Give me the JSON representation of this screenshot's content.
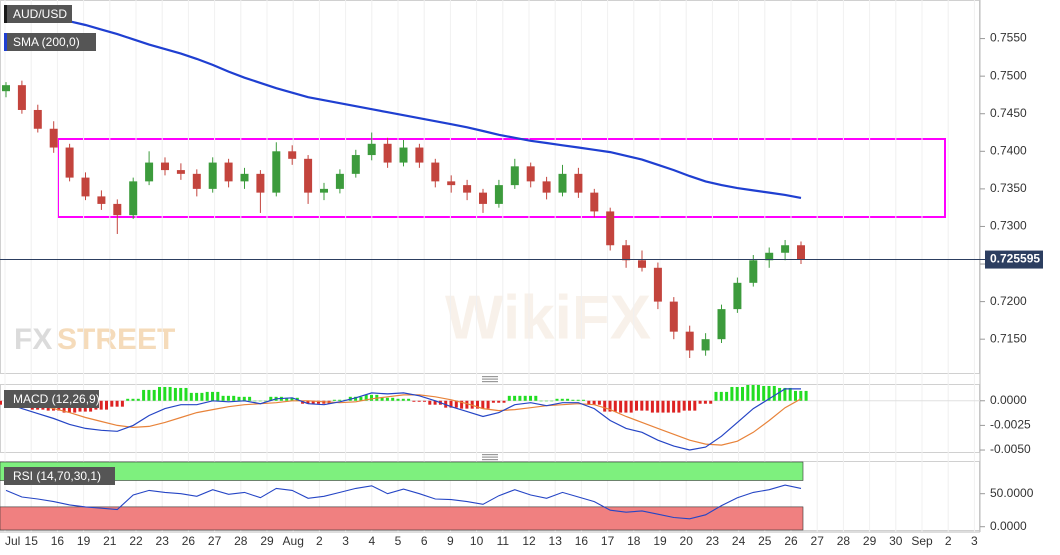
{
  "watermark": {
    "fx": "FX",
    "street": "STREET",
    "wikifx": "WikiFX"
  },
  "chart_data": [
    {
      "type": "candlestick",
      "title": "AUD/USD",
      "up_color": "#3c9b3c",
      "down_color": "#c3443d",
      "candles": [
        [
          0.748,
          0.7492,
          0.7472,
          0.7488
        ],
        [
          0.7488,
          0.7494,
          0.745,
          0.7455
        ],
        [
          0.7455,
          0.7462,
          0.7425,
          0.743
        ],
        [
          0.743,
          0.744,
          0.7398,
          0.7405
        ],
        [
          0.7405,
          0.741,
          0.736,
          0.7365
        ],
        [
          0.7365,
          0.7372,
          0.7335,
          0.734
        ],
        [
          0.734,
          0.7348,
          0.7322,
          0.733
        ],
        [
          0.733,
          0.7336,
          0.729,
          0.7315
        ],
        [
          0.7315,
          0.7365,
          0.731,
          0.736
        ],
        [
          0.736,
          0.74,
          0.7355,
          0.7385
        ],
        [
          0.7385,
          0.7392,
          0.7368,
          0.7375
        ],
        [
          0.7375,
          0.7384,
          0.7362,
          0.737
        ],
        [
          0.737,
          0.7376,
          0.734,
          0.735
        ],
        [
          0.735,
          0.7392,
          0.7345,
          0.7385
        ],
        [
          0.7385,
          0.739,
          0.7352,
          0.736
        ],
        [
          0.736,
          0.7378,
          0.735,
          0.737
        ],
        [
          0.737,
          0.7375,
          0.7318,
          0.7345
        ],
        [
          0.7345,
          0.7412,
          0.734,
          0.74
        ],
        [
          0.74,
          0.7408,
          0.7382,
          0.739
        ],
        [
          0.739,
          0.7395,
          0.733,
          0.7345
        ],
        [
          0.7345,
          0.7358,
          0.7335,
          0.735
        ],
        [
          0.735,
          0.7376,
          0.7344,
          0.737
        ],
        [
          0.737,
          0.7402,
          0.7365,
          0.7395
        ],
        [
          0.7395,
          0.7425,
          0.7388,
          0.741
        ],
        [
          0.741,
          0.7418,
          0.7378,
          0.7385
        ],
        [
          0.7385,
          0.7415,
          0.738,
          0.7405
        ],
        [
          0.7405,
          0.741,
          0.7378,
          0.7385
        ],
        [
          0.7385,
          0.739,
          0.7352,
          0.736
        ],
        [
          0.736,
          0.7368,
          0.7345,
          0.7355
        ],
        [
          0.7355,
          0.7362,
          0.7335,
          0.7345
        ],
        [
          0.7345,
          0.735,
          0.7318,
          0.733
        ],
        [
          0.733,
          0.7362,
          0.7325,
          0.7355
        ],
        [
          0.7355,
          0.739,
          0.735,
          0.738
        ],
        [
          0.738,
          0.7385,
          0.7352,
          0.736
        ],
        [
          0.736,
          0.7366,
          0.7336,
          0.7345
        ],
        [
          0.7345,
          0.7382,
          0.734,
          0.737
        ],
        [
          0.737,
          0.7378,
          0.7338,
          0.7345
        ],
        [
          0.7345,
          0.735,
          0.7312,
          0.732
        ],
        [
          0.732,
          0.7325,
          0.7268,
          0.7275
        ],
        [
          0.7275,
          0.7282,
          0.7245,
          0.7255
        ],
        [
          0.7255,
          0.7268,
          0.724,
          0.7245
        ],
        [
          0.7245,
          0.7252,
          0.719,
          0.72
        ],
        [
          0.72,
          0.7206,
          0.715,
          0.716
        ],
        [
          0.716,
          0.7168,
          0.7125,
          0.7135
        ],
        [
          0.7135,
          0.7158,
          0.7128,
          0.715
        ],
        [
          0.715,
          0.7196,
          0.7145,
          0.719
        ],
        [
          0.719,
          0.7232,
          0.7185,
          0.7225
        ],
        [
          0.7225,
          0.7262,
          0.722,
          0.7255
        ],
        [
          0.7255,
          0.7272,
          0.7245,
          0.7265
        ],
        [
          0.7265,
          0.7282,
          0.7255,
          0.7275
        ],
        [
          0.7275,
          0.728,
          0.725,
          0.7256
        ]
      ],
      "sma": {
        "name": "SMA (200,0)",
        "color": "#1f3fd1",
        "values": [
          0.7592,
          0.7587,
          0.7583,
          0.7578,
          0.7573,
          0.7568,
          0.7562,
          0.7556,
          0.7549,
          0.7542,
          0.7536,
          0.753,
          0.7523,
          0.7515,
          0.7506,
          0.7498,
          0.7491,
          0.7484,
          0.7478,
          0.7472,
          0.7468,
          0.7464,
          0.746,
          0.7456,
          0.7452,
          0.7448,
          0.7444,
          0.744,
          0.7436,
          0.7432,
          0.7427,
          0.7422,
          0.7418,
          0.7414,
          0.7411,
          0.7408,
          0.7405,
          0.7402,
          0.7399,
          0.7394,
          0.7389,
          0.7382,
          0.7375,
          0.7367,
          0.736,
          0.7355,
          0.7351,
          0.7348,
          0.7345,
          0.7342,
          0.7338
        ]
      },
      "last_price": 0.725595,
      "ylim": [
        0.7105,
        0.76
      ],
      "yticks": [
        {
          "value": 0.715,
          "label": "0.7150"
        },
        {
          "value": 0.72,
          "label": "0.7200"
        },
        {
          "value": 0.725,
          "label": "0.7250"
        },
        {
          "value": 0.73,
          "label": "0.7300"
        },
        {
          "value": 0.735,
          "label": "0.7350"
        },
        {
          "value": 0.74,
          "label": "0.7400"
        },
        {
          "value": 0.745,
          "label": "0.7450"
        },
        {
          "value": 0.75,
          "label": "0.7500"
        },
        {
          "value": 0.755,
          "label": "0.7550"
        }
      ],
      "x_labels": [
        "Jul",
        "15",
        "16",
        "19",
        "21",
        "22",
        "23",
        "26",
        "27",
        "28",
        "29",
        "Aug",
        "2",
        "3",
        "4",
        "5",
        "6",
        "9",
        "10",
        "11",
        "12",
        "13",
        "16",
        "17",
        "18",
        "19",
        "20",
        "23",
        "24",
        "25",
        "26",
        "27",
        "28",
        "29",
        "30",
        "Sep",
        "2",
        "3"
      ]
    },
    {
      "type": "macd",
      "title": "MACD (12,26,9)",
      "macd": {
        "color": "#2545c5",
        "values": [
          -0.0002,
          -0.0008,
          -0.0013,
          -0.0018,
          -0.0024,
          -0.0028,
          -0.003,
          -0.0031,
          -0.0025,
          -0.0015,
          -0.0008,
          -0.0004,
          -0.0004,
          0.0,
          -0.0001,
          0.0,
          -0.0003,
          0.0002,
          0.0003,
          -0.0003,
          -0.0004,
          -0.0001,
          0.0003,
          0.0008,
          0.0007,
          0.0008,
          0.0005,
          0.0,
          -0.0006,
          -0.0011,
          -0.0016,
          -0.0012,
          -0.0004,
          -0.0002,
          -0.0005,
          -0.0002,
          -0.0002,
          -0.0008,
          -0.002,
          -0.0028,
          -0.0032,
          -0.004,
          -0.0046,
          -0.005,
          -0.0047,
          -0.0036,
          -0.0022,
          -0.0008,
          0.0002,
          0.0012,
          0.0012
        ]
      },
      "signal": {
        "color": "#e8833a",
        "values": [
          0.0002,
          -0.0001,
          -0.0004,
          -0.0008,
          -0.0012,
          -0.0017,
          -0.0021,
          -0.0025,
          -0.0027,
          -0.0026,
          -0.0022,
          -0.0017,
          -0.0012,
          -0.0009,
          -0.0006,
          -0.0004,
          -0.0003,
          -0.0002,
          0.0,
          0.0,
          -0.0001,
          -0.0002,
          -0.0001,
          0.0002,
          0.0004,
          0.0006,
          0.0006,
          0.0004,
          0.0001,
          -0.0003,
          -0.0008,
          -0.001,
          -0.0009,
          -0.0007,
          -0.0005,
          -0.0004,
          -0.0003,
          -0.0004,
          -0.0009,
          -0.0016,
          -0.0022,
          -0.0028,
          -0.0034,
          -0.004,
          -0.0044,
          -0.0045,
          -0.0041,
          -0.0032,
          -0.002,
          -0.0007,
          0.0002
        ]
      },
      "histogram": {
        "up_color": "#22dd22",
        "down_color": "#dd2222",
        "values": [
          -0.0004,
          -0.0007,
          -0.0009,
          -0.001,
          -0.0012,
          -0.0011,
          -0.0009,
          -0.0006,
          0.0002,
          0.0011,
          0.0014,
          0.0013,
          0.0008,
          0.0009,
          0.0005,
          0.0004,
          0.0,
          0.0004,
          0.0003,
          -0.0003,
          -0.0003,
          0.0001,
          0.0004,
          0.0006,
          0.0003,
          0.0002,
          -0.0001,
          -0.0004,
          -0.0007,
          -0.0008,
          -0.0008,
          -0.0002,
          0.0005,
          0.0005,
          0.0,
          0.0002,
          0.0001,
          -0.0004,
          -0.0011,
          -0.0012,
          -0.001,
          -0.0012,
          -0.0012,
          -0.001,
          -0.0003,
          0.0009,
          0.0014,
          0.0016,
          0.0015,
          0.0013,
          0.001
        ]
      },
      "ylim": [
        -0.0052,
        0.0016
      ],
      "yticks": [
        {
          "value": -0.005,
          "label": "-0.0050"
        },
        {
          "value": -0.0025,
          "label": "-0.0025"
        },
        {
          "value": 0,
          "label": "0.0000"
        }
      ]
    },
    {
      "type": "rsi",
      "title": "RSI (14,70,30,1)",
      "color": "#2545c5",
      "overbought": 70,
      "oversold": 30,
      "overbought_color": "#7ef07e",
      "oversold_color": "#f08080",
      "values": [
        55,
        45,
        42,
        38,
        33,
        30,
        28,
        26,
        48,
        55,
        52,
        50,
        46,
        56,
        49,
        52,
        44,
        58,
        55,
        43,
        46,
        52,
        58,
        62,
        50,
        57,
        50,
        42,
        41,
        38,
        34,
        47,
        56,
        48,
        43,
        52,
        45,
        38,
        25,
        22,
        24,
        19,
        14,
        12,
        18,
        32,
        44,
        52,
        56,
        63,
        58
      ],
      "ylim": [
        -5,
        98
      ],
      "yticks": [
        {
          "value": 0,
          "label": "0.0000"
        },
        {
          "value": 50,
          "label": "50.0000"
        }
      ]
    }
  ]
}
